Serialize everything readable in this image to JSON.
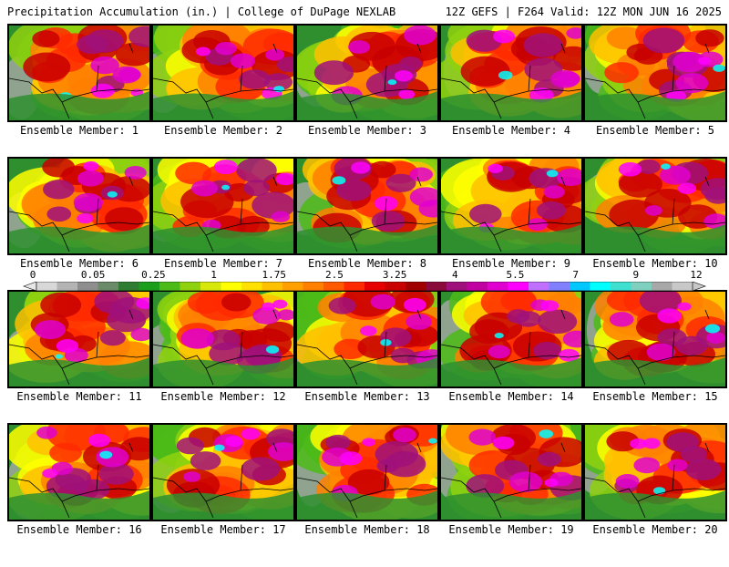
{
  "header": {
    "left_title": "Precipitation Accumulation (in.) | College of DuPage NEXLAB",
    "right_title": "12Z GEFS | F264 Valid: 12Z MON JUN 16 2025"
  },
  "panel_label_prefix": "Ensemble Member: ",
  "members": [
    {
      "number": "1"
    },
    {
      "number": "2"
    },
    {
      "number": "3"
    },
    {
      "number": "4"
    },
    {
      "number": "5"
    },
    {
      "number": "6"
    },
    {
      "number": "7"
    },
    {
      "number": "8"
    },
    {
      "number": "9"
    },
    {
      "number": "10"
    },
    {
      "number": "11"
    },
    {
      "number": "12"
    },
    {
      "number": "13"
    },
    {
      "number": "14"
    },
    {
      "number": "15"
    },
    {
      "number": "16"
    },
    {
      "number": "17"
    },
    {
      "number": "18"
    },
    {
      "number": "19"
    },
    {
      "number": "20"
    }
  ],
  "colorbar": {
    "tick_labels": [
      "0",
      "0.05",
      "0.25",
      "1",
      "1.75",
      "2.5",
      "3.25",
      "4",
      "5.5",
      "7",
      "9",
      "12"
    ],
    "colors": [
      "#d8d8d8",
      "#b4b4b4",
      "#8e8e8e",
      "#6a8a6a",
      "#2e7d32",
      "#1b9e1b",
      "#4cbb17",
      "#8fd10f",
      "#d7e70a",
      "#ffff00",
      "#ffe000",
      "#ffc000",
      "#ffa000",
      "#ff8000",
      "#ff5a00",
      "#ff2a00",
      "#e60000",
      "#c80000",
      "#a00000",
      "#8b0a3c",
      "#a0107a",
      "#c000a0",
      "#e000d0",
      "#ff00ff",
      "#c070ff",
      "#8080ff",
      "#00c8ff",
      "#00ffff",
      "#40e0d0",
      "#80d0c0",
      "#a8a8a8",
      "#c8c8c8"
    ]
  }
}
